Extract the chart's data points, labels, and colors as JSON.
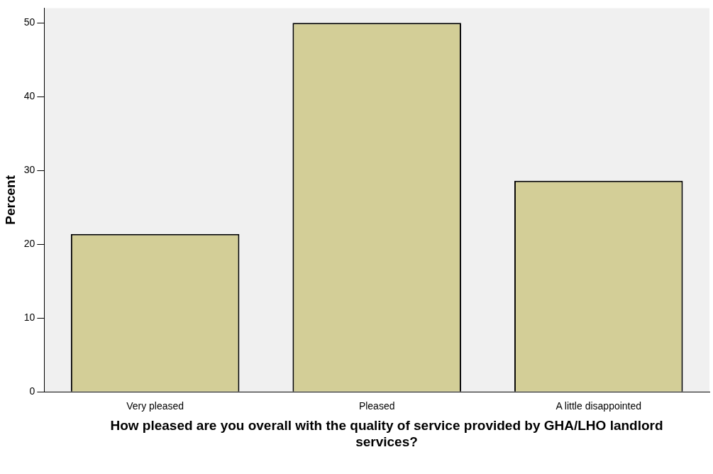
{
  "chart_data": {
    "type": "bar",
    "xlabel": "How pleased are you overall with the quality of service provided by GHA/LHO landlord services?",
    "ylabel": "Percent",
    "categories": [
      "Very pleased",
      "Pleased",
      "A little disappointed"
    ],
    "values": [
      21.4,
      50.0,
      28.6
    ],
    "color": "#d3ce97",
    "ylim": [
      0,
      52
    ],
    "yticks": [
      0,
      10,
      20,
      30,
      40,
      50
    ],
    "grid": false,
    "legend": false
  }
}
